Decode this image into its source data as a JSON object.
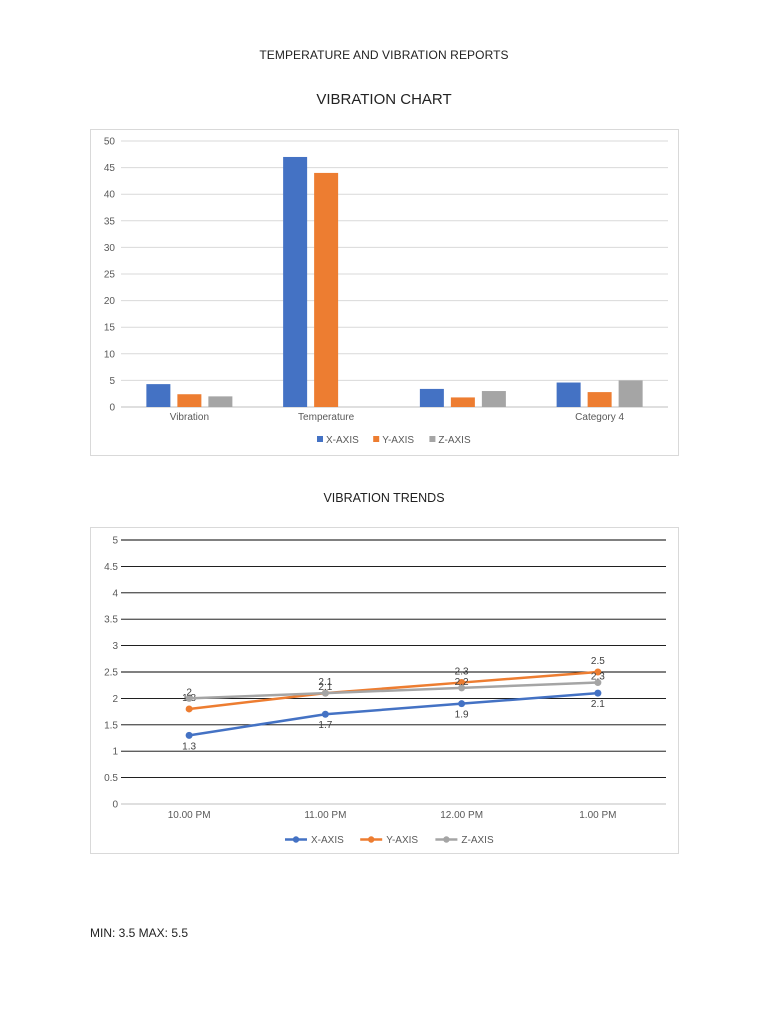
{
  "document": {
    "title": "TEMPERATURE AND VIBRATION REPORTS",
    "footer": "MIN: 3.5 MAX: 5.5"
  },
  "chart_data": [
    {
      "type": "bar",
      "title": "VIBRATION CHART",
      "categories": [
        "Vibration",
        "Temperature",
        "",
        "Category 4"
      ],
      "series": [
        {
          "name": "X-AXIS",
          "color": "#4472c4",
          "values": [
            4.3,
            47,
            3.4,
            4.6
          ]
        },
        {
          "name": "Y-AXIS",
          "color": "#ed7d31",
          "values": [
            2.4,
            44,
            1.8,
            2.8
          ]
        },
        {
          "name": "Z-AXIS",
          "color": "#a5a5a5",
          "values": [
            2.0,
            null,
            3.0,
            5.0
          ]
        }
      ],
      "ylim": [
        0,
        50
      ],
      "yticks": [
        0,
        5,
        10,
        15,
        20,
        25,
        30,
        35,
        40,
        45,
        50
      ],
      "grid": true,
      "legend": "bottom"
    },
    {
      "type": "line",
      "title": "VIBRATION TRENDS",
      "categories": [
        "10.00 PM",
        "11.00 PM",
        "12.00 PM",
        "1.00 PM"
      ],
      "series": [
        {
          "name": "X-AXIS",
          "color": "#4472c4",
          "values": [
            1.3,
            1.7,
            1.9,
            2.1
          ]
        },
        {
          "name": "Y-AXIS",
          "color": "#ed7d31",
          "values": [
            1.8,
            2.1,
            2.3,
            2.5
          ]
        },
        {
          "name": "Z-AXIS",
          "color": "#a5a5a5",
          "values": [
            2.0,
            2.1,
            2.2,
            2.3
          ]
        }
      ],
      "ylim": [
        0,
        5
      ],
      "yticks": [
        "0",
        "0.5",
        "1",
        "1.5",
        "2",
        "2.5",
        "3",
        "3.5",
        "4",
        "4.5",
        "5"
      ],
      "grid": true,
      "legend": "bottom"
    }
  ]
}
